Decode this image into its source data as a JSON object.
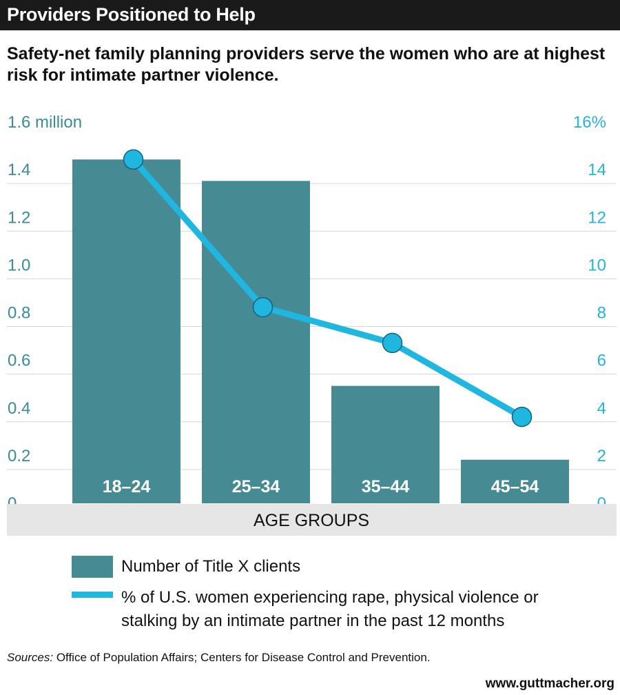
{
  "header": {
    "title": "Providers Positioned to Help",
    "subtitle": "Safety-net family planning providers serve the women who are at highest risk for intimate partner violence."
  },
  "colors": {
    "title_bg": "#1a1a1a",
    "bar": "#468b94",
    "line": "#1fb6e0",
    "left_axis_text": "#3a8b96",
    "right_axis_text": "#27b3d9",
    "grid": "#d6d6d6",
    "xaxis_band": "#e6e6e6"
  },
  "chart_data": {
    "type": "bar",
    "categories": [
      "18–24",
      "25–34",
      "35–44",
      "45–54"
    ],
    "series": [
      {
        "name": "Number of Title X clients",
        "type": "bar",
        "axis": "left",
        "values": [
          1.44,
          1.35,
          0.49,
          0.18
        ]
      },
      {
        "name": "% of U.S. women experiencing rape, physical violence or stalking by an intimate partner in the past 12 months",
        "type": "line",
        "axis": "right",
        "values": [
          14.4,
          8.2,
          6.7,
          3.6
        ]
      }
    ],
    "xlabel": "AGE GROUPS",
    "left_axis": {
      "ticks": [
        "0",
        "0.2",
        "0.4",
        "0.6",
        "0.8",
        "1.0",
        "1.2",
        "1.4",
        "1.6"
      ],
      "top_unit": "million",
      "ylim": [
        0,
        1.6
      ]
    },
    "right_axis": {
      "ticks": [
        "0",
        "2",
        "4",
        "6",
        "8",
        "10",
        "12",
        "14",
        "16"
      ],
      "top_unit": "%",
      "ylim": [
        0,
        16
      ]
    },
    "grid": true,
    "legend_position": "bottom"
  },
  "legend": {
    "bar_label": "Number of Title X clients",
    "line_label": "% of U.S. women experiencing rape, physical violence or stalking by an intimate partner in the past 12 months"
  },
  "footer": {
    "sources_prefix": "Sources:",
    "sources_text": " Office of Population Affairs; Centers for Disease Control and Prevention.",
    "url": "www.guttmacher.org"
  }
}
